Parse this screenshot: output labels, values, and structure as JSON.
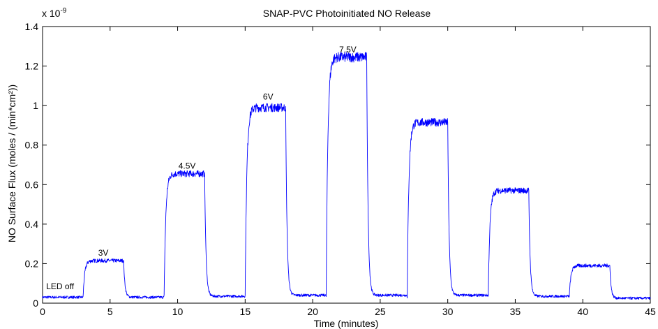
{
  "chart_data": {
    "type": "line",
    "title": "SNAP-PVC Photoinitiated NO Release",
    "xlabel": "Time (minutes)",
    "ylabel": "NO Surface Flux (moles / (min*cm²))",
    "y_exponent_label": "x 10",
    "y_exponent_power": "-9",
    "xlim": [
      0,
      45
    ],
    "ylim": [
      0,
      1.4
    ],
    "x_ticks": [
      0,
      5,
      10,
      15,
      20,
      25,
      30,
      35,
      40,
      45
    ],
    "x_tick_labels": [
      "0",
      "5",
      "10",
      "15",
      "20",
      "25",
      "30",
      "35",
      "40",
      "45"
    ],
    "y_ticks": [
      0,
      0.2,
      0.4,
      0.6,
      0.8,
      1.0,
      1.2,
      1.4
    ],
    "y_tick_labels": [
      "0",
      "0.2",
      "0.4",
      "0.6",
      "0.8",
      "1",
      "1.2",
      "1.4"
    ],
    "grid": false,
    "line_color": "#0000ff",
    "series": [
      {
        "segments": [
          {
            "start": 0,
            "end": 3,
            "level": 0.03
          },
          {
            "start": 3,
            "end": 6,
            "level": 0.215
          },
          {
            "start": 6,
            "end": 9,
            "level": 0.03
          },
          {
            "start": 9,
            "end": 12,
            "level": 0.655
          },
          {
            "start": 12,
            "end": 15,
            "level": 0.035
          },
          {
            "start": 15,
            "end": 18,
            "level": 0.99
          },
          {
            "start": 18,
            "end": 21,
            "level": 0.04
          },
          {
            "start": 21,
            "end": 24,
            "level": 1.245
          },
          {
            "start": 24,
            "end": 27,
            "level": 0.04
          },
          {
            "start": 27,
            "end": 30,
            "level": 0.915
          },
          {
            "start": 30,
            "end": 33,
            "level": 0.04
          },
          {
            "start": 33,
            "end": 36,
            "level": 0.57
          },
          {
            "start": 36,
            "end": 39,
            "level": 0.035
          },
          {
            "start": 39,
            "end": 42,
            "level": 0.19
          },
          {
            "start": 42,
            "end": 45,
            "level": 0.025
          }
        ]
      }
    ],
    "annotations": [
      {
        "text": "LED off",
        "x": 1.3,
        "y": 0.07
      },
      {
        "text": "3V",
        "x": 4.5,
        "y": 0.24
      },
      {
        "text": "4.5V",
        "x": 10.7,
        "y": 0.68
      },
      {
        "text": "6V",
        "x": 16.7,
        "y": 1.03
      },
      {
        "text": "7.5V",
        "x": 22.6,
        "y": 1.27
      }
    ]
  }
}
